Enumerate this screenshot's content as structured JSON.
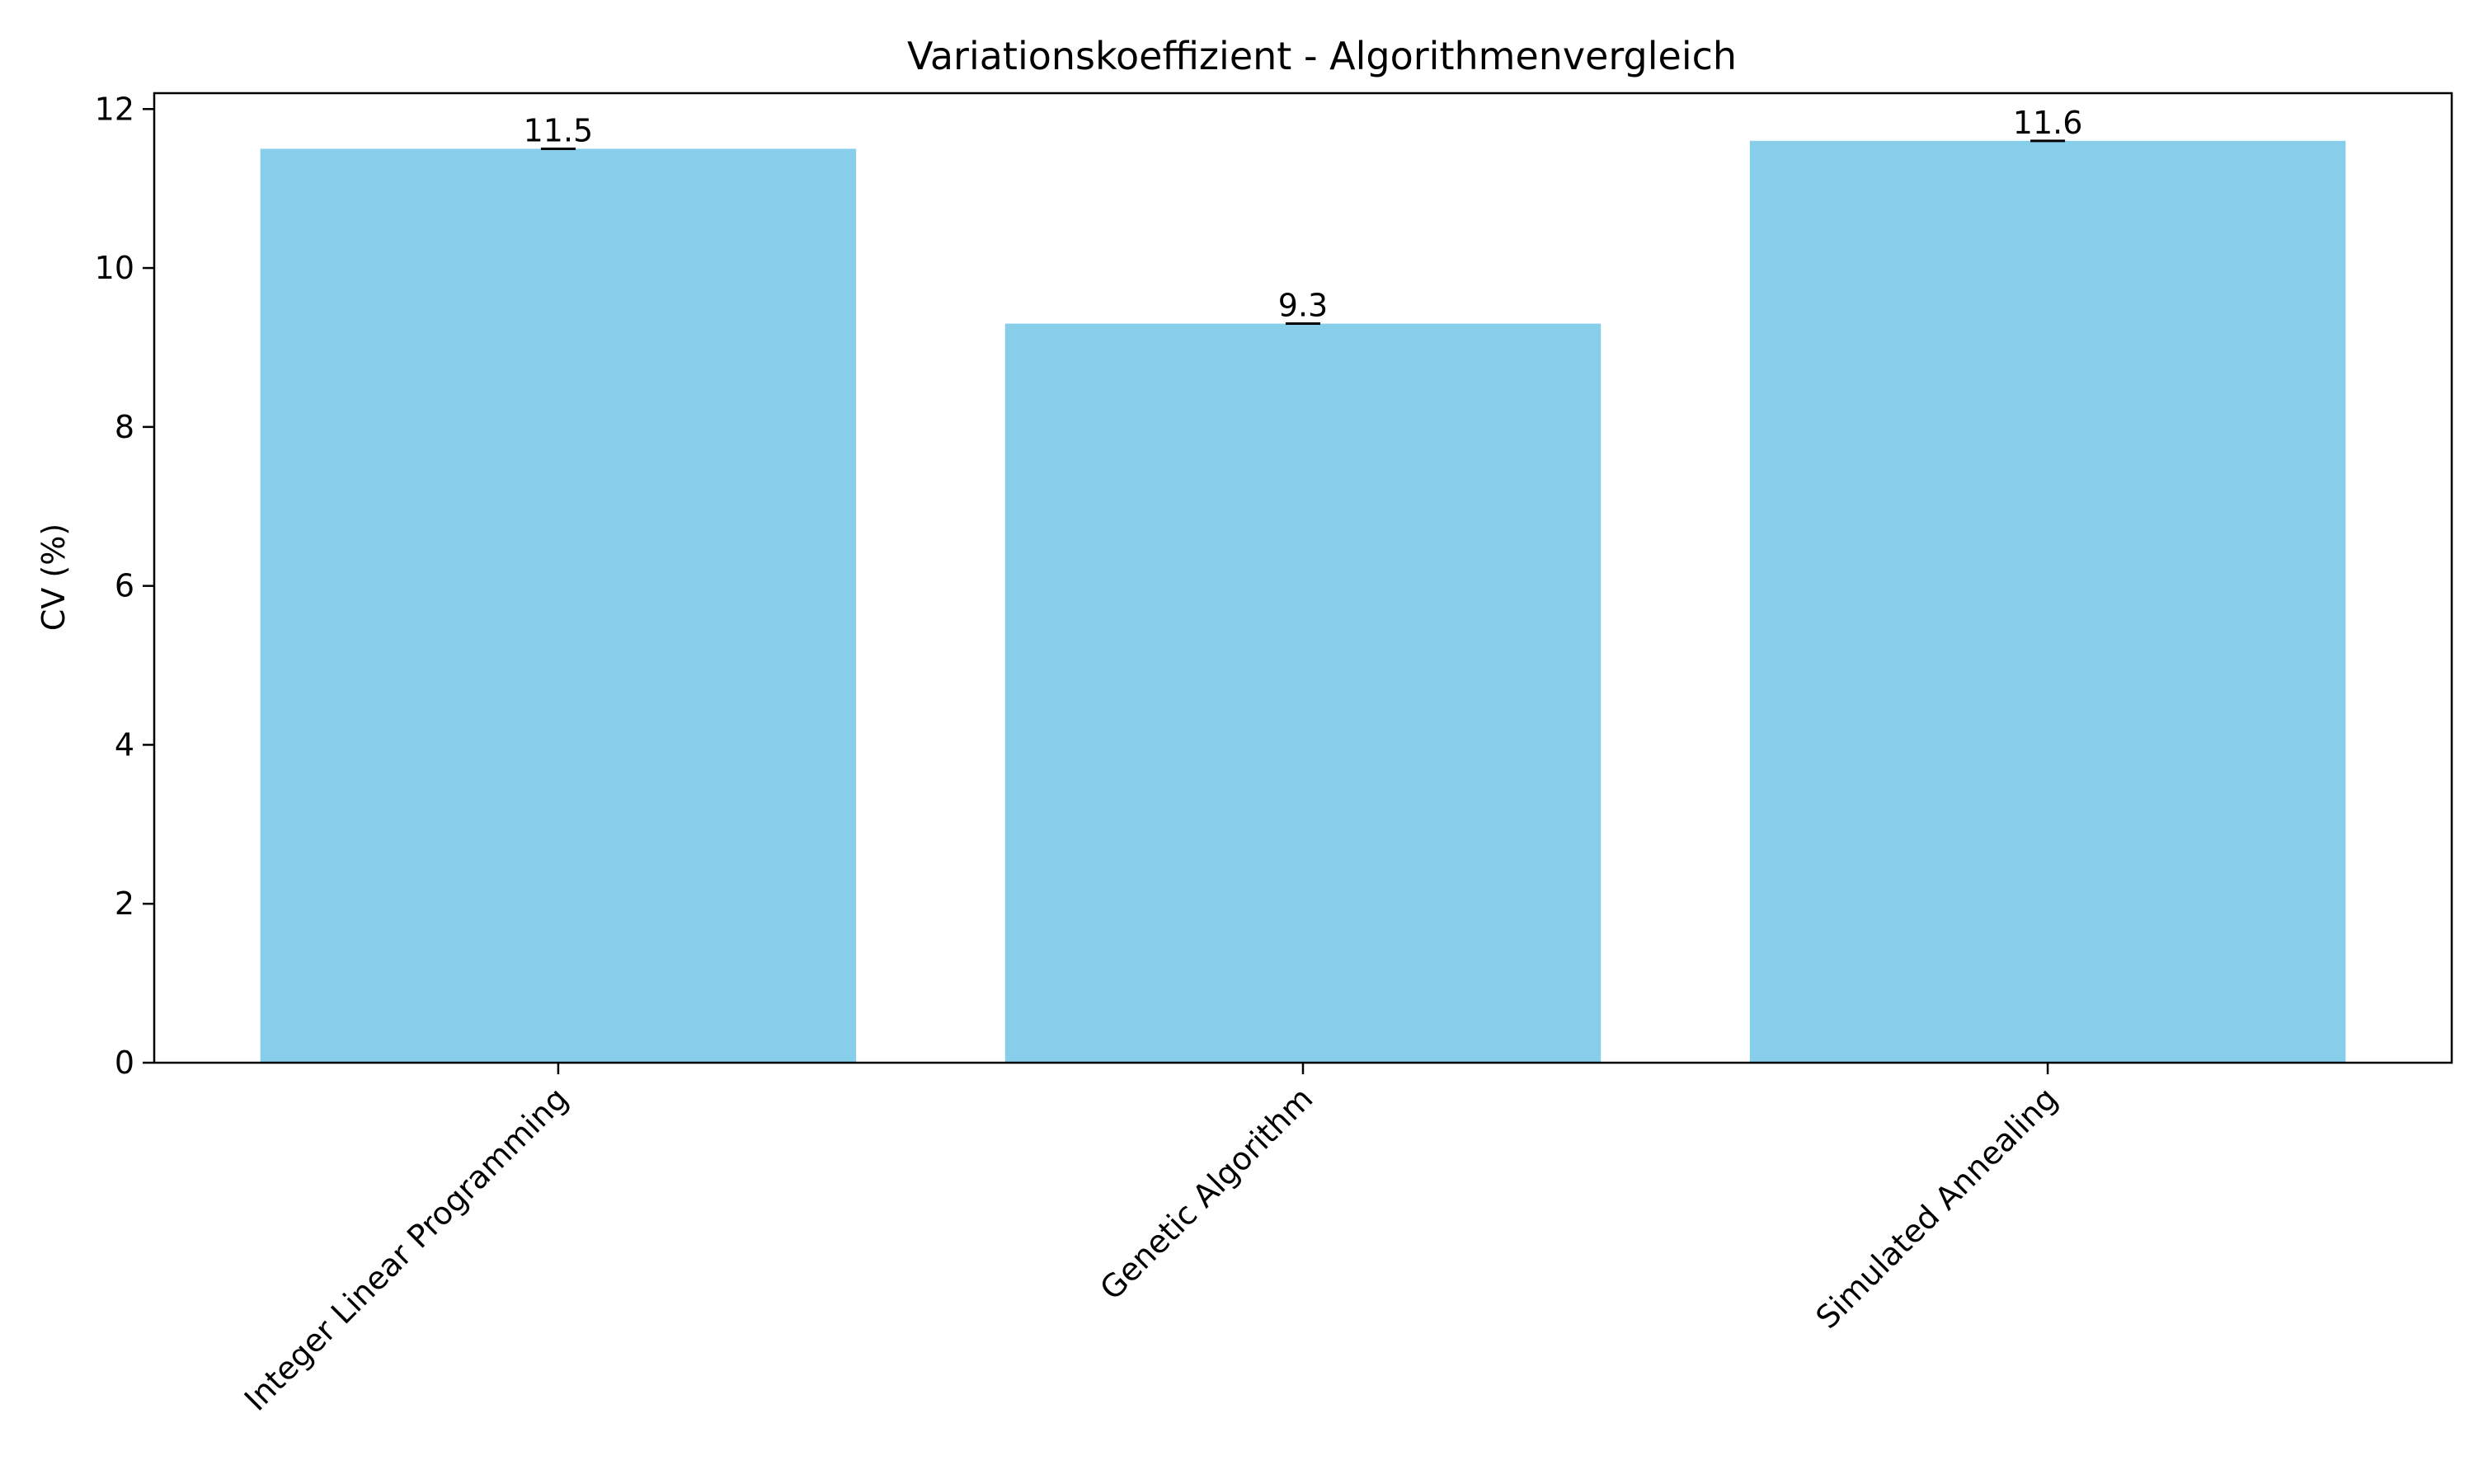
{
  "chart_data": {
    "type": "bar",
    "title": "Variationskoeffizient - Algorithmenvergleich",
    "xlabel": "",
    "ylabel": "CV (%)",
    "categories": [
      "Integer Linear Programming",
      "Genetic Algorithm",
      "Simulated Annealing"
    ],
    "values": [
      11.5,
      9.3,
      11.6
    ],
    "value_labels": [
      "11.5",
      "9.3",
      "11.6"
    ],
    "ylim": [
      0,
      12.2
    ],
    "yticks": [
      0,
      2,
      4,
      6,
      8,
      10,
      12
    ],
    "ytick_labels": [
      "0",
      "2",
      "4",
      "6",
      "8",
      "10",
      "12"
    ],
    "bar_color": "#87CEEB",
    "grid": false,
    "legend": "none"
  }
}
